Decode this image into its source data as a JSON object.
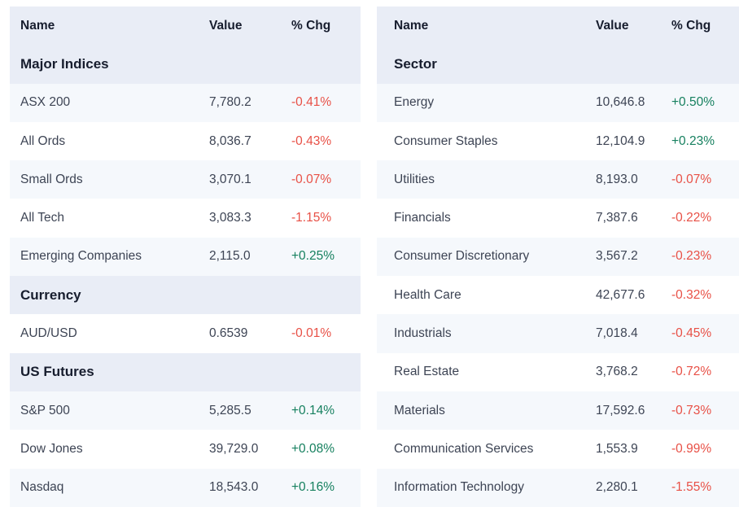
{
  "columns": {
    "name": "Name",
    "value": "Value",
    "chg": "% Chg"
  },
  "colors": {
    "positive": "#16805f",
    "negative": "#e85046",
    "header_bg": "#e9edf6",
    "row_tint_bg": "#f5f8fc",
    "header_text": "#171d2e",
    "body_text": "#3d4454"
  },
  "tables": [
    {
      "id": "indices",
      "sections": [
        {
          "title": "Major Indices",
          "rows": [
            [
              "ASX 200",
              "7,780.2",
              "-0.41%"
            ],
            [
              "All Ords",
              "8,036.7",
              "-0.43%"
            ],
            [
              "Small Ords",
              "3,070.1",
              "-0.07%"
            ],
            [
              "All Tech",
              "3,083.3",
              "-1.15%"
            ],
            [
              "Emerging Companies",
              "2,115.0",
              "+0.25%"
            ]
          ]
        },
        {
          "title": "Currency",
          "rows": [
            [
              "AUD/USD",
              "0.6539",
              "-0.01%"
            ]
          ]
        },
        {
          "title": "US Futures",
          "rows": [
            [
              "S&P 500",
              "5,285.5",
              "+0.14%"
            ],
            [
              "Dow Jones",
              "39,729.0",
              "+0.08%"
            ],
            [
              "Nasdaq",
              "18,543.0",
              "+0.16%"
            ]
          ]
        }
      ]
    },
    {
      "id": "sectors",
      "sections": [
        {
          "title": "Sector",
          "rows": [
            [
              "Energy",
              "10,646.8",
              "+0.50%"
            ],
            [
              "Consumer Staples",
              "12,104.9",
              "+0.23%"
            ],
            [
              "Utilities",
              "8,193.0",
              "-0.07%"
            ],
            [
              "Financials",
              "7,387.6",
              "-0.22%"
            ],
            [
              "Consumer Discretionary",
              "3,567.2",
              "-0.23%"
            ],
            [
              "Health Care",
              "42,677.6",
              "-0.32%"
            ],
            [
              "Industrials",
              "7,018.4",
              "-0.45%"
            ],
            [
              "Real Estate",
              "3,768.2",
              "-0.72%"
            ],
            [
              "Materials",
              "17,592.6",
              "-0.73%"
            ],
            [
              "Communication Services",
              "1,553.9",
              "-0.99%"
            ],
            [
              "Information Technology",
              "2,280.1",
              "-1.55%"
            ]
          ]
        }
      ]
    }
  ]
}
